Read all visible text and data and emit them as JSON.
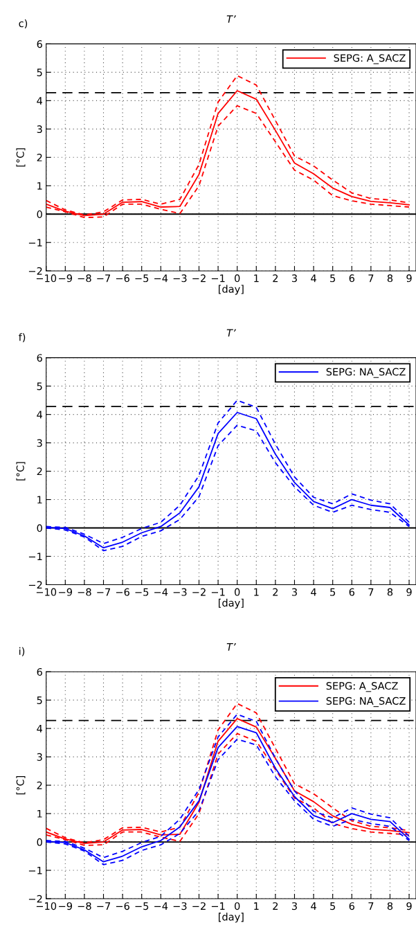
{
  "chart_data": [
    {
      "type": "line",
      "title": "T’",
      "annotations": [
        "c)"
      ],
      "xlabel": "[day]",
      "ylabel": "[°C]",
      "x": [
        -10,
        -9,
        -8,
        -7,
        -6,
        -5,
        -4,
        -3,
        -2,
        -1,
        0,
        1,
        2,
        3,
        4,
        5,
        6,
        7,
        8,
        9
      ],
      "xlim": [
        -10,
        9.36
      ],
      "xticks": [
        -10,
        -9,
        -8,
        -7,
        -6,
        -5,
        -4,
        -3,
        -2,
        -1,
        0,
        1,
        2,
        3,
        4,
        5,
        6,
        7,
        8,
        9
      ],
      "ylim": [
        -2,
        6
      ],
      "yticks": [
        -2,
        -1,
        0,
        1,
        2,
        3,
        4,
        5,
        6
      ],
      "grid": true,
      "legend": "top right",
      "line_style": "solid",
      "ref_lines": [
        {
          "axis": "y",
          "value": 4.28,
          "color": "#000000",
          "line_style": "dashed"
        },
        {
          "axis": "y",
          "value": 0,
          "color": "#000000",
          "line_style": "solid"
        }
      ],
      "series": [
        {
          "name": "SEPG: A_SACZ",
          "color": "#ff0000",
          "values": [
            0.35,
            0.1,
            -0.05,
            0.0,
            0.42,
            0.44,
            0.25,
            0.27,
            1.4,
            3.55,
            4.35,
            4.05,
            2.95,
            1.8,
            1.42,
            0.92,
            0.62,
            0.45,
            0.4,
            0.33
          ]
        },
        {
          "color": "#ff0000",
          "line_style": "dashed",
          "values": [
            0.48,
            0.15,
            -0.03,
            0.08,
            0.5,
            0.52,
            0.35,
            0.52,
            1.75,
            3.95,
            4.88,
            4.55,
            3.3,
            2.05,
            1.7,
            1.2,
            0.75,
            0.55,
            0.5,
            0.4
          ]
        },
        {
          "color": "#ff0000",
          "line_style": "dashed",
          "values": [
            0.25,
            0.08,
            -0.12,
            -0.1,
            0.35,
            0.35,
            0.17,
            0.02,
            1.0,
            3.1,
            3.82,
            3.55,
            2.55,
            1.55,
            1.2,
            0.65,
            0.47,
            0.35,
            0.3,
            0.25
          ]
        }
      ]
    },
    {
      "type": "line",
      "title": "T’",
      "annotations": [
        "f)"
      ],
      "xlabel": "[day]",
      "ylabel": "[°C]",
      "x": [
        -10,
        -9,
        -8,
        -7,
        -6,
        -5,
        -4,
        -3,
        -2,
        -1,
        0,
        1,
        2,
        3,
        4,
        5,
        6,
        7,
        8,
        9
      ],
      "xlim": [
        -10,
        9.36
      ],
      "xticks": [
        -10,
        -9,
        -8,
        -7,
        -6,
        -5,
        -4,
        -3,
        -2,
        -1,
        0,
        1,
        2,
        3,
        4,
        5,
        6,
        7,
        8,
        9
      ],
      "ylim": [
        -2,
        6
      ],
      "yticks": [
        -2,
        -1,
        0,
        1,
        2,
        3,
        4,
        5,
        6
      ],
      "grid": true,
      "legend": "top right",
      "line_style": "solid",
      "ref_lines": [
        {
          "axis": "y",
          "value": 4.28,
          "color": "#000000",
          "line_style": "dashed"
        },
        {
          "axis": "y",
          "value": 0,
          "color": "#000000",
          "line_style": "solid"
        }
      ],
      "series": [
        {
          "name": "SEPG: NA_SACZ",
          "color": "#0000ff",
          "values": [
            0.02,
            -0.02,
            -0.28,
            -0.7,
            -0.5,
            -0.17,
            0.05,
            0.53,
            1.45,
            3.33,
            4.07,
            3.85,
            2.6,
            1.6,
            0.93,
            0.68,
            1.0,
            0.8,
            0.72,
            0.1
          ]
        },
        {
          "color": "#0000ff",
          "line_style": "dashed",
          "values": [
            0.05,
            0.02,
            -0.22,
            -0.55,
            -0.33,
            -0.02,
            0.2,
            0.8,
            1.85,
            3.7,
            4.5,
            4.25,
            2.95,
            1.8,
            1.08,
            0.85,
            1.2,
            0.98,
            0.85,
            0.2
          ]
        },
        {
          "color": "#0000ff",
          "line_style": "dashed",
          "values": [
            0.0,
            -0.07,
            -0.32,
            -0.8,
            -0.65,
            -0.3,
            -0.1,
            0.3,
            1.1,
            2.9,
            3.62,
            3.42,
            2.3,
            1.45,
            0.8,
            0.55,
            0.8,
            0.65,
            0.55,
            0.05
          ]
        }
      ]
    },
    {
      "type": "line",
      "title": "T’",
      "annotations": [
        "i)"
      ],
      "xlabel": "[day]",
      "ylabel": "[°C]",
      "x": [
        -10,
        -9,
        -8,
        -7,
        -6,
        -5,
        -4,
        -3,
        -2,
        -1,
        0,
        1,
        2,
        3,
        4,
        5,
        6,
        7,
        8,
        9
      ],
      "xlim": [
        -10,
        9.36
      ],
      "xticks": [
        -10,
        -9,
        -8,
        -7,
        -6,
        -5,
        -4,
        -3,
        -2,
        -1,
        0,
        1,
        2,
        3,
        4,
        5,
        6,
        7,
        8,
        9
      ],
      "ylim": [
        -2,
        6
      ],
      "yticks": [
        -2,
        -1,
        0,
        1,
        2,
        3,
        4,
        5,
        6
      ],
      "grid": true,
      "legend": "top right",
      "line_style": "solid",
      "ref_lines": [
        {
          "axis": "y",
          "value": 4.28,
          "color": "#000000",
          "line_style": "dashed"
        },
        {
          "axis": "y",
          "value": 0,
          "color": "#000000",
          "line_style": "solid"
        }
      ],
      "series": [
        {
          "name": "SEPG: A_SACZ",
          "color": "#ff0000",
          "values": [
            0.35,
            0.1,
            -0.05,
            0.0,
            0.42,
            0.44,
            0.25,
            0.27,
            1.4,
            3.55,
            4.35,
            4.05,
            2.95,
            1.8,
            1.42,
            0.92,
            0.62,
            0.45,
            0.4,
            0.33
          ]
        },
        {
          "color": "#ff0000",
          "line_style": "dashed",
          "values": [
            0.48,
            0.15,
            -0.03,
            0.08,
            0.5,
            0.52,
            0.35,
            0.52,
            1.75,
            3.95,
            4.88,
            4.55,
            3.3,
            2.05,
            1.7,
            1.2,
            0.75,
            0.55,
            0.5,
            0.4
          ]
        },
        {
          "color": "#ff0000",
          "line_style": "dashed",
          "values": [
            0.25,
            0.08,
            -0.12,
            -0.1,
            0.35,
            0.35,
            0.17,
            0.02,
            1.0,
            3.1,
            3.82,
            3.55,
            2.55,
            1.55,
            1.2,
            0.65,
            0.47,
            0.35,
            0.3,
            0.25
          ]
        },
        {
          "name": "SEPG: NA_SACZ",
          "color": "#0000ff",
          "values": [
            0.02,
            -0.02,
            -0.28,
            -0.7,
            -0.5,
            -0.17,
            0.05,
            0.53,
            1.45,
            3.33,
            4.07,
            3.85,
            2.6,
            1.6,
            0.93,
            0.68,
            1.0,
            0.8,
            0.72,
            0.1
          ]
        },
        {
          "color": "#0000ff",
          "line_style": "dashed",
          "values": [
            0.05,
            0.02,
            -0.22,
            -0.55,
            -0.33,
            -0.02,
            0.2,
            0.8,
            1.85,
            3.7,
            4.5,
            4.25,
            2.95,
            1.8,
            1.08,
            0.85,
            1.2,
            0.98,
            0.85,
            0.2
          ]
        },
        {
          "color": "#0000ff",
          "line_style": "dashed",
          "values": [
            0.0,
            -0.07,
            -0.32,
            -0.8,
            -0.65,
            -0.3,
            -0.1,
            0.3,
            1.1,
            2.9,
            3.62,
            3.42,
            2.3,
            1.45,
            0.8,
            0.55,
            0.8,
            0.65,
            0.55,
            0.05
          ]
        }
      ]
    }
  ]
}
